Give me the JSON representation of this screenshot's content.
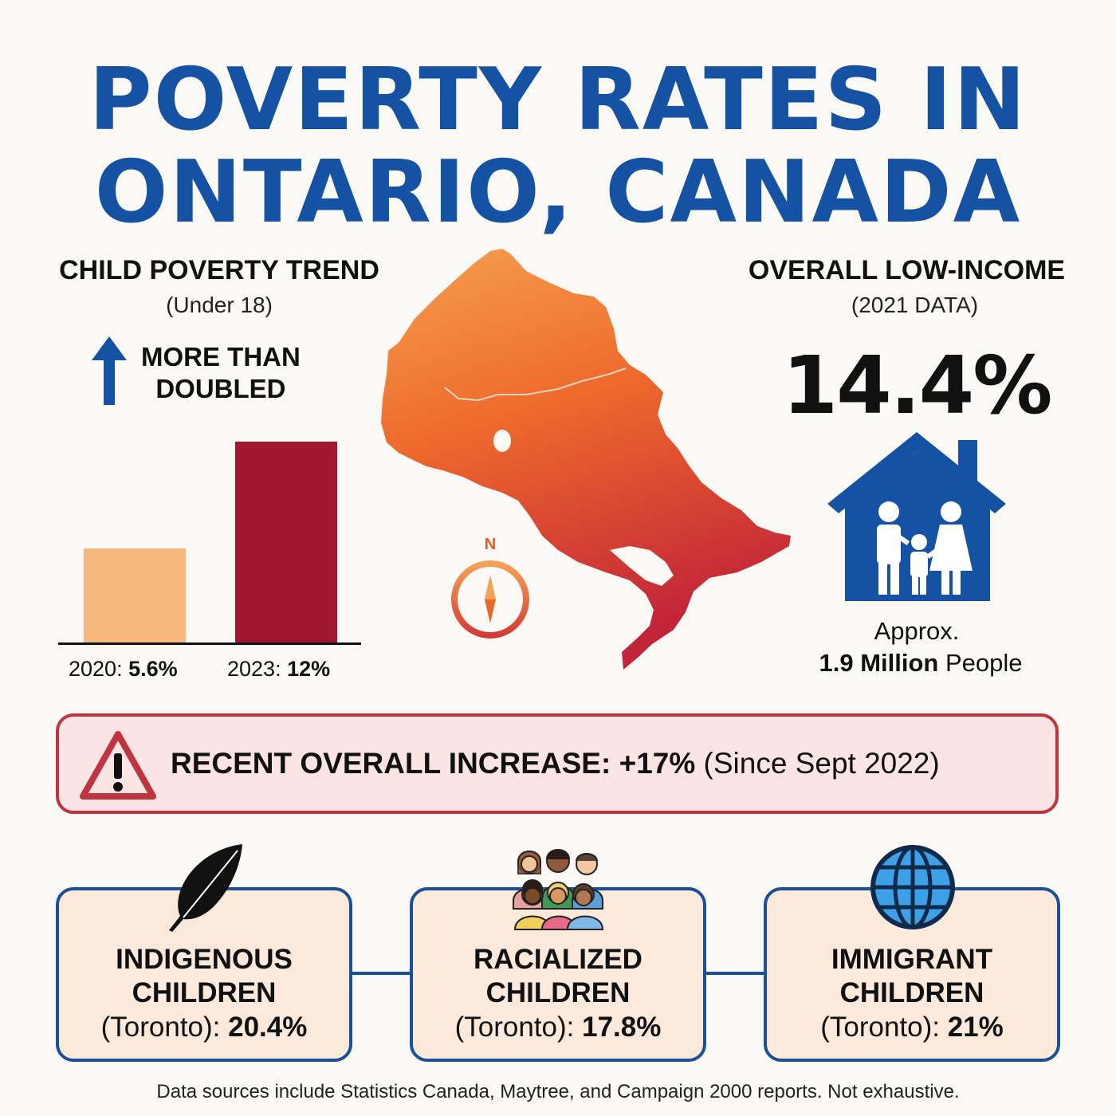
{
  "title": {
    "line1": "POVERTY RATES IN",
    "line2": "ONTARIO, CANADA"
  },
  "child_poverty": {
    "heading": "CHILD POVERTY TREND",
    "subheading": "(Under 18)",
    "trend_line1": "MORE THAN",
    "trend_line2": "DOUBLED",
    "trend_icon": "up-arrow-icon"
  },
  "chart_data": {
    "type": "bar",
    "categories": [
      "2020",
      "2023"
    ],
    "values": [
      5.6,
      12
    ],
    "value_labels": [
      "5.6%",
      "12%"
    ],
    "colors": [
      "#f7b97e",
      "#a0182d"
    ],
    "ylim": [
      0,
      12
    ]
  },
  "bar_labels": {
    "year_2020": "2020:",
    "value_2020": "5.6%",
    "year_2023": "2023:",
    "value_2023": "12%"
  },
  "map": {
    "icon": "ontario-map",
    "compass_label": "N"
  },
  "overall_low_income": {
    "heading": "OVERALL LOW-INCOME",
    "subheading": "(2021 DATA)",
    "percent": "14.4%",
    "icon": "family-house-icon",
    "approx": "Approx.",
    "count": "1.9 Million",
    "count_suffix": " People"
  },
  "alert": {
    "icon": "warning-icon",
    "label": "RECENT OVERALL INCREASE: +17%",
    "suffix": " (Since Sept 2022)"
  },
  "groups": [
    {
      "icon": "feather-icon",
      "line1": "INDIGENOUS",
      "line2": "CHILDREN",
      "place": "(Toronto): ",
      "value": "20.4%"
    },
    {
      "icon": "diverse-people-icon",
      "line1": "RACIALIZED",
      "line2": "CHILDREN",
      "place": "(Toronto): ",
      "value": "17.8%"
    },
    {
      "icon": "globe-icon",
      "line1": "IMMIGRANT",
      "line2": "CHILDREN",
      "place": "(Toronto): ",
      "value": "21%"
    }
  ],
  "footer": "Data sources include Statistics Canada, Maytree, and Campaign 2000 reports. Not exhaustive.",
  "colors": {
    "title_blue": "#1552a3",
    "alert_red": "#c0343f",
    "alert_bg": "#fbe4e4",
    "card_border": "#1a4f9a",
    "card_bg": "#fbe9dc",
    "map_top": "#f39a4a",
    "map_bottom": "#c9283a"
  }
}
